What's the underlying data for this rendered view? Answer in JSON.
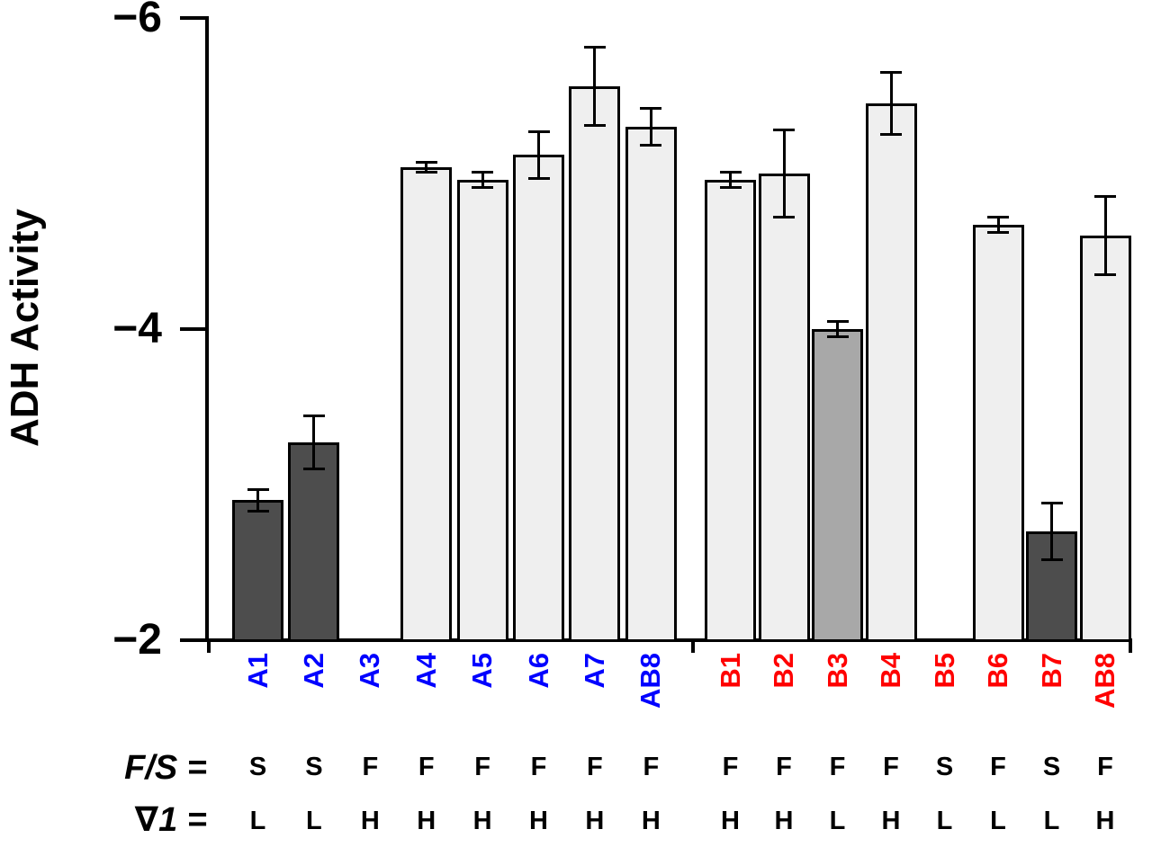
{
  "chart_data": {
    "type": "bar",
    "title": "",
    "ylabel": "ADH Activity",
    "xlabel": "",
    "grid": false,
    "legend": false,
    "y_axis": {
      "range_displayed": [
        -2,
        -6
      ],
      "ticks": [
        {
          "label": "−6",
          "value": -6
        },
        {
          "label": "−4",
          "value": -4
        },
        {
          "label": "−2",
          "value": -2
        }
      ]
    },
    "palette": {
      "dark": "#4d4d4d",
      "mid": "#a8a8a8",
      "light": "#efefef",
      "bar_border": "#000000",
      "group_a_label": "#0000ff",
      "group_b_label": "#ff0000"
    },
    "groups": [
      {
        "id": "A",
        "label_color_key": "group_a_label",
        "bars": [
          {
            "label": "A1",
            "value": -2.9,
            "err": 0.07,
            "fill": "dark"
          },
          {
            "label": "A2",
            "value": -3.27,
            "err": 0.17,
            "fill": "dark"
          },
          {
            "label": "A3",
            "value": null,
            "err": null,
            "fill": null
          },
          {
            "label": "A4",
            "value": -5.04,
            "err": 0.03,
            "fill": "light"
          },
          {
            "label": "A5",
            "value": -4.96,
            "err": 0.05,
            "fill": "light"
          },
          {
            "label": "A6",
            "value": -5.12,
            "err": 0.15,
            "fill": "light"
          },
          {
            "label": "A7",
            "value": -5.56,
            "err": 0.25,
            "fill": "light"
          },
          {
            "label": "AB8",
            "value": -5.3,
            "err": 0.12,
            "fill": "light"
          }
        ]
      },
      {
        "id": "B",
        "label_color_key": "group_b_label",
        "bars": [
          {
            "label": "B1",
            "value": -4.96,
            "err": 0.05,
            "fill": "light"
          },
          {
            "label": "B2",
            "value": -5.0,
            "err": 0.28,
            "fill": "light"
          },
          {
            "label": "B3",
            "value": -4.0,
            "err": 0.05,
            "fill": "mid"
          },
          {
            "label": "B4",
            "value": -5.45,
            "err": 0.2,
            "fill": "light"
          },
          {
            "label": "B5",
            "value": null,
            "err": null,
            "fill": null
          },
          {
            "label": "B6",
            "value": -4.67,
            "err": 0.05,
            "fill": "light"
          },
          {
            "label": "B7",
            "value": -2.7,
            "err": 0.18,
            "fill": "dark"
          },
          {
            "label": "AB8",
            "value": -4.6,
            "err": 0.25,
            "fill": "light"
          }
        ]
      }
    ],
    "annotation_rows": [
      {
        "label": "F/S =",
        "values": [
          "S",
          "S",
          "F",
          "F",
          "F",
          "F",
          "F",
          "F",
          "F",
          "F",
          "F",
          "F",
          "S",
          "F",
          "S",
          "F"
        ]
      },
      {
        "label": "∇1 =",
        "values": [
          "L",
          "L",
          "H",
          "H",
          "H",
          "H",
          "H",
          "H",
          "H",
          "H",
          "L",
          "H",
          "L",
          "L",
          "L",
          "H"
        ]
      }
    ]
  }
}
